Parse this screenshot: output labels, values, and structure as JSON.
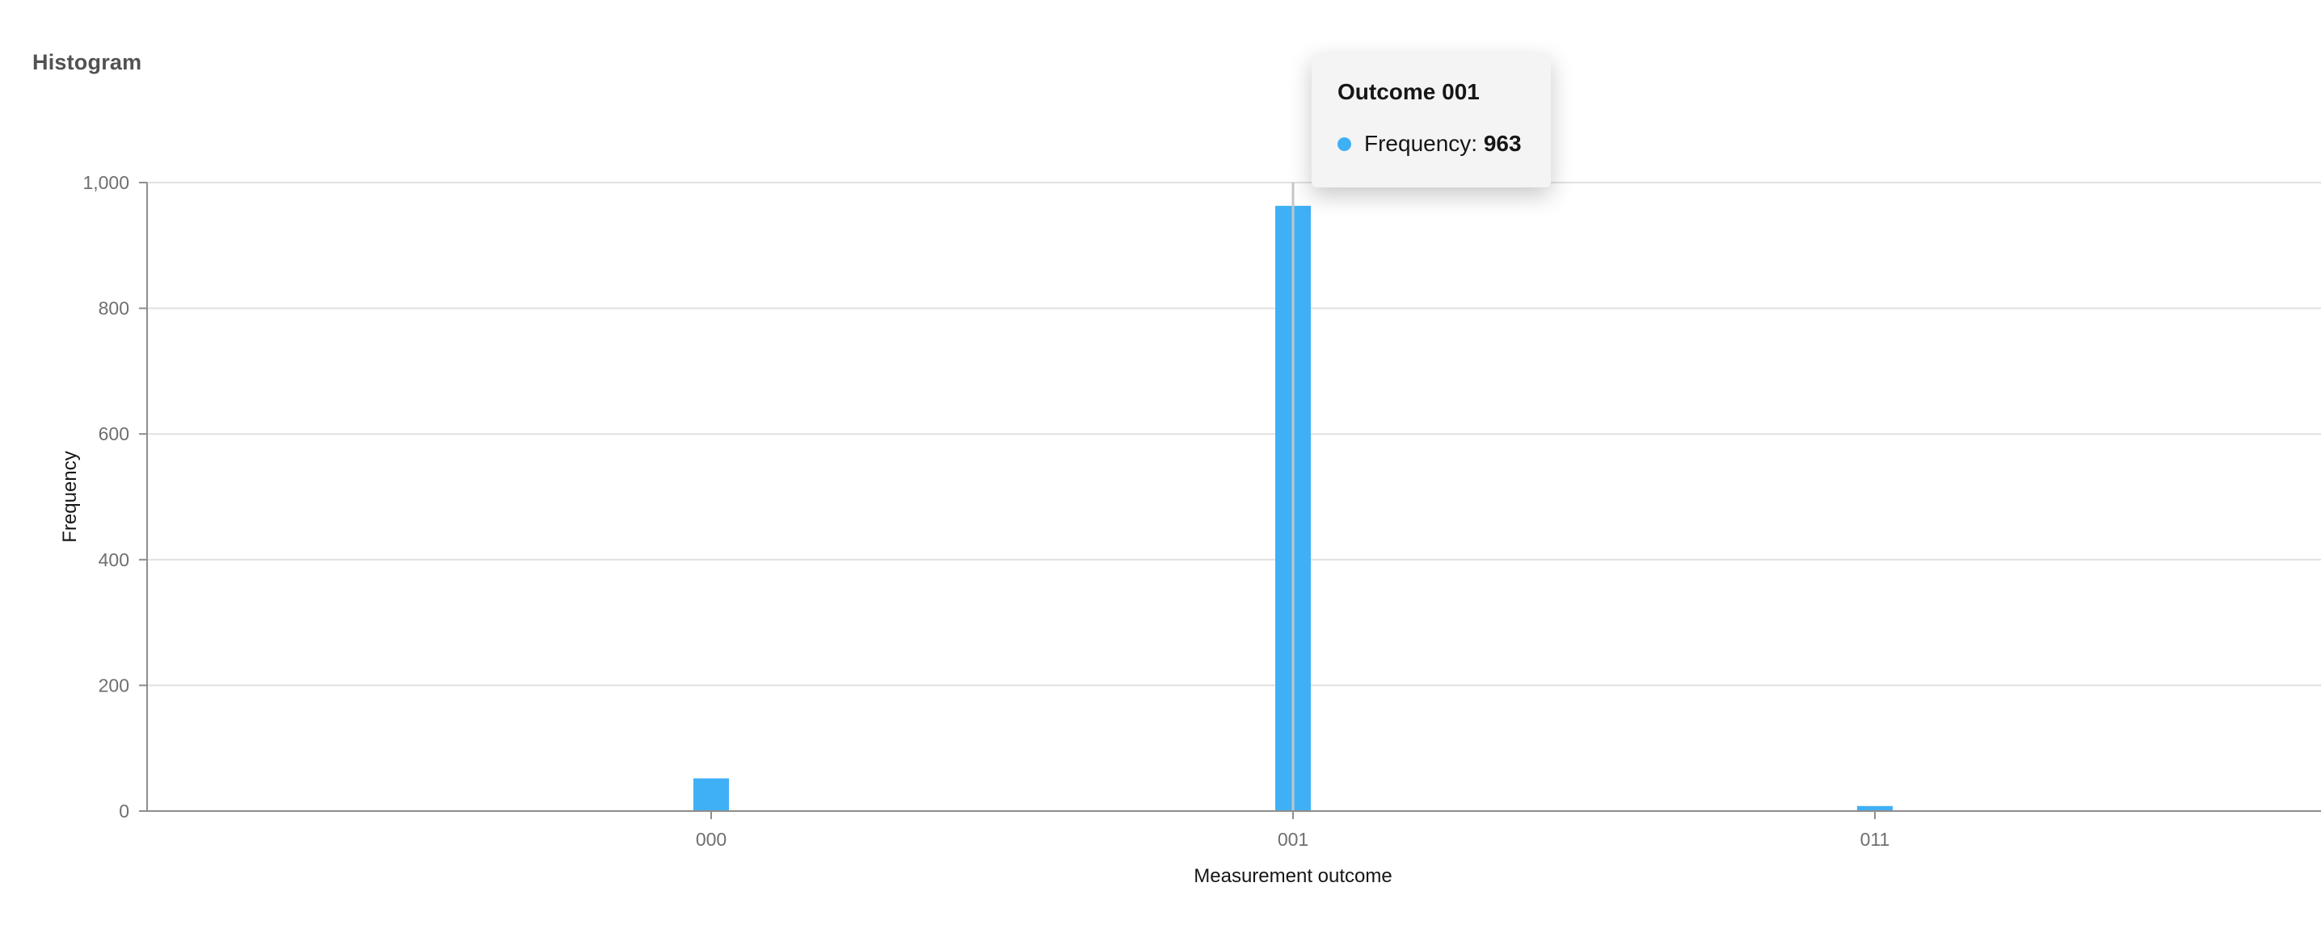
{
  "panel": {
    "title": "Histogram"
  },
  "chart_data": {
    "type": "bar",
    "categories": [
      "000",
      "001",
      "011"
    ],
    "values": [
      52,
      963,
      8
    ],
    "xlabel": "Measurement outcome",
    "ylabel": "Frequency",
    "ylim": [
      0,
      1000
    ],
    "yticks": [
      0,
      200,
      400,
      600,
      800,
      1000
    ],
    "ytick_labels": [
      "0",
      "200",
      "400",
      "600",
      "800",
      "1,000"
    ],
    "grid": true,
    "bar_color": "#3fb0f6",
    "hover_category": "001"
  },
  "tooltip": {
    "title": "Outcome 001",
    "series_label": "Frequency:",
    "value": "963",
    "dot_color": "#3fb0f6"
  }
}
